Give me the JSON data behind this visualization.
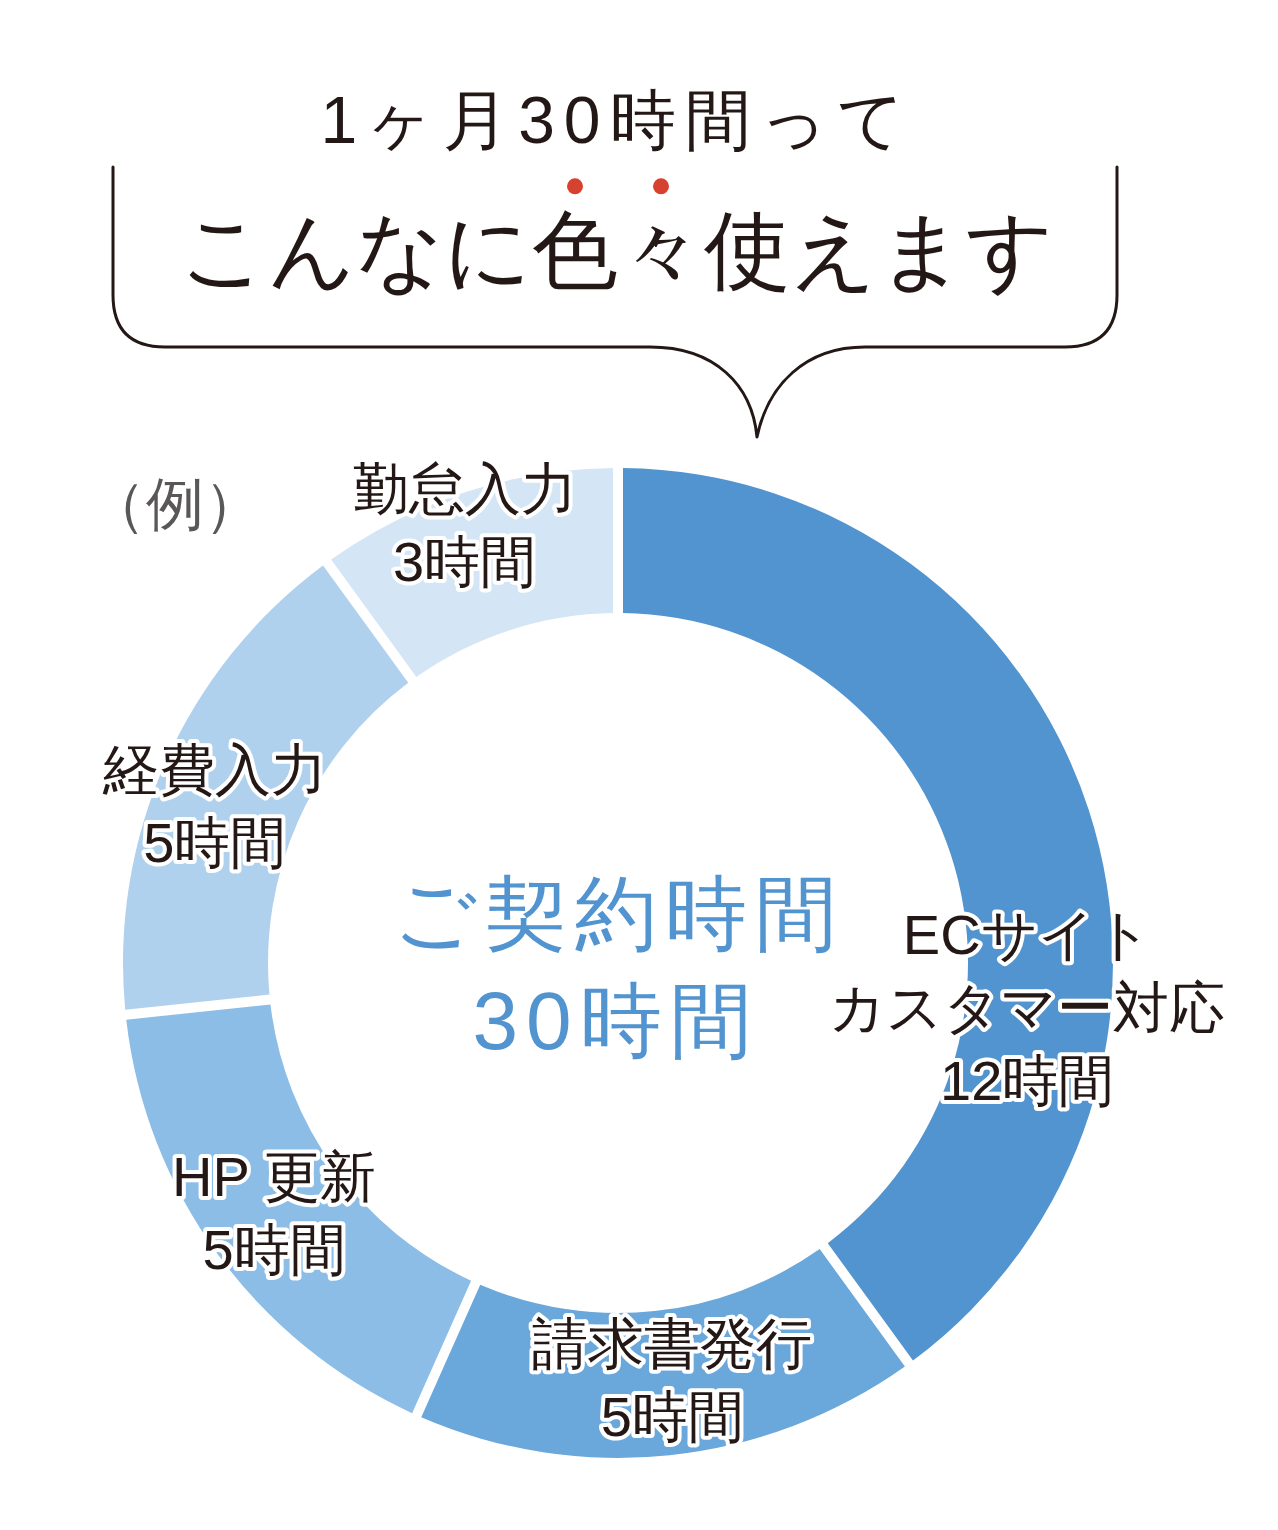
{
  "chart_data": {
    "type": "donut",
    "title": "1ヶ月30時間って",
    "subtitle": "こんなに色々使えます",
    "categories": [
      "ECサイトカスタマー対応",
      "請求書発行",
      "HP 更新",
      "経費入力",
      "勤怠入力"
    ],
    "values": [
      12,
      5,
      5,
      5,
      3
    ],
    "value_labels": [
      "12時間",
      "5時間",
      "5時間",
      "5時間",
      "3時間"
    ],
    "colors": [
      "#5294cf",
      "#6aa7db",
      "#8bbde6",
      "#afd1ee",
      "#d4e6f6"
    ],
    "annotations": [
      "（例）",
      "ご契約時間",
      "30時間"
    ]
  }
}
